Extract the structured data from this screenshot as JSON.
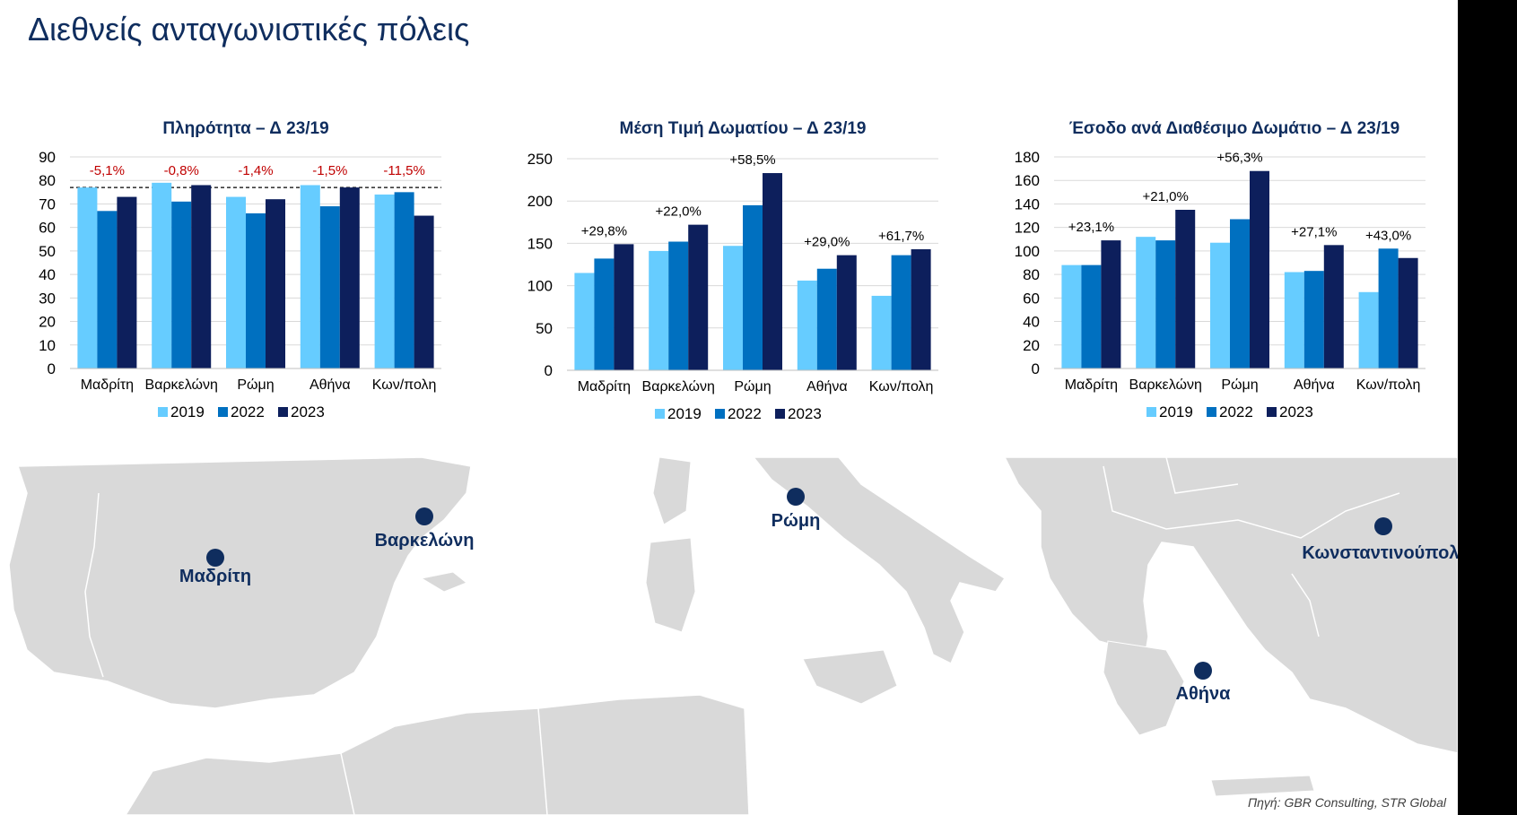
{
  "page": {
    "title": "Διεθνείς ανταγωνιστικές πόλεις",
    "source": "Πηγή: GBR Consulting, STR Global"
  },
  "colors": {
    "s2019": "#66ccff",
    "s2022": "#0070c0",
    "s2023": "#0d1f5c",
    "text_dark": "#0f2d5e",
    "annotation_red": "#c00000",
    "map_land": "#d9d9d9",
    "map_border": "#ffffff",
    "marker": "#0f2d5e"
  },
  "map": {
    "cities": [
      {
        "name": "Μαδρίτη",
        "icon": "city-marker-icon"
      },
      {
        "name": "Βαρκελώνη",
        "icon": "city-marker-icon"
      },
      {
        "name": "Ρώμη",
        "icon": "city-marker-icon"
      },
      {
        "name": "Κωνσταντινούπολη",
        "icon": "city-marker-icon"
      },
      {
        "name": "Αθήνα",
        "icon": "city-marker-icon"
      }
    ]
  },
  "chart_data": [
    {
      "type": "bar",
      "title": "Πληρότητα – Δ 23/19",
      "categories": [
        "Μαδρίτη",
        "Βαρκελώνη",
        "Ρώμη",
        "Αθήνα",
        "Κων/πολη"
      ],
      "series": [
        {
          "name": "2019",
          "values": [
            77,
            79,
            73,
            78,
            74
          ]
        },
        {
          "name": "2022",
          "values": [
            67,
            71,
            66,
            69,
            75
          ]
        },
        {
          "name": "2023",
          "values": [
            73,
            78,
            72,
            77,
            65
          ]
        }
      ],
      "annotations": [
        "-5,1%",
        "-0,8%",
        "-1,4%",
        "-1,5%",
        "-11,5%"
      ],
      "annotation_color": "red",
      "reference_line": 77,
      "ylim": [
        0,
        90
      ],
      "yticks": [
        0,
        10,
        20,
        30,
        40,
        50,
        60,
        70,
        80,
        90
      ],
      "grid": true,
      "legend": "bottom"
    },
    {
      "type": "bar",
      "title": "Μέση Τιμή Δωματίου – Δ 23/19",
      "categories": [
        "Μαδρίτη",
        "Βαρκελώνη",
        "Ρώμη",
        "Αθήνα",
        "Κων/πολη"
      ],
      "series": [
        {
          "name": "2019",
          "values": [
            115,
            141,
            147,
            106,
            88
          ]
        },
        {
          "name": "2022",
          "values": [
            132,
            152,
            195,
            120,
            136
          ]
        },
        {
          "name": "2023",
          "values": [
            149,
            172,
            233,
            136,
            143
          ]
        }
      ],
      "annotations": [
        "+29,8%",
        "+22,0%",
        "+58,5%",
        "+29,0%",
        "+61,7%"
      ],
      "annotation_color": "dark",
      "ylim": [
        0,
        250
      ],
      "yticks": [
        0,
        50,
        100,
        150,
        200,
        250
      ],
      "grid": true,
      "legend": "bottom"
    },
    {
      "type": "bar",
      "title": "Έσοδο ανά Διαθέσιμο Δωμάτιο – Δ 23/19",
      "categories": [
        "Μαδρίτη",
        "Βαρκελώνη",
        "Ρώμη",
        "Αθήνα",
        "Κων/πολη"
      ],
      "series": [
        {
          "name": "2019",
          "values": [
            88,
            112,
            107,
            82,
            65
          ]
        },
        {
          "name": "2022",
          "values": [
            88,
            109,
            127,
            83,
            102
          ]
        },
        {
          "name": "2023",
          "values": [
            109,
            135,
            168,
            105,
            94
          ]
        }
      ],
      "annotations": [
        "+23,1%",
        "+21,0%",
        "+56,3%",
        "+27,1%",
        "+43,0%"
      ],
      "annotation_color": "dark",
      "ylim": [
        0,
        180
      ],
      "yticks": [
        0,
        20,
        40,
        60,
        80,
        100,
        120,
        140,
        160,
        180
      ],
      "grid": true,
      "legend": "bottom"
    }
  ]
}
